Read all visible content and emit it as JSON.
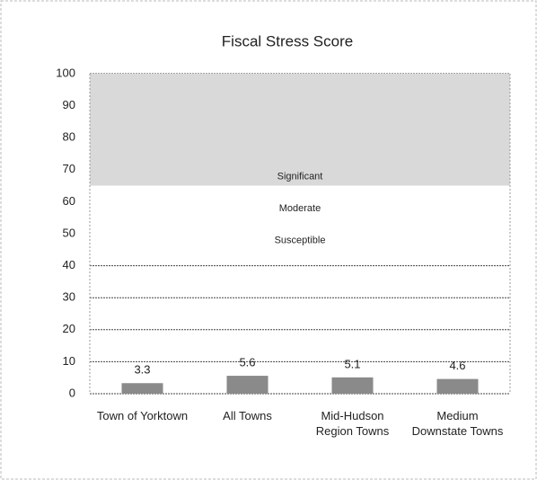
{
  "chart_data": {
    "type": "bar",
    "title": "Fiscal Stress Score",
    "categories": [
      "Town of Yorktown",
      "All Towns",
      "Mid-Hudson Region Towns",
      "Medium Downstate Towns"
    ],
    "values": [
      3.3,
      5.6,
      5.1,
      4.6
    ],
    "color": "#8a8a8a",
    "ylim": [
      0,
      100
    ],
    "yticks": [
      0,
      10,
      20,
      30,
      40,
      50,
      60,
      70,
      80,
      90,
      100
    ],
    "grid": true,
    "bands": [
      {
        "label": "Significant",
        "range": [
          65,
          100
        ],
        "color": "#d9d9d9"
      },
      {
        "label": "Moderate",
        "range": [
          55,
          65
        ],
        "color": "#ffffff"
      },
      {
        "label": "Susceptible",
        "range": [
          45,
          55
        ],
        "color": "#ffffff"
      }
    ]
  }
}
